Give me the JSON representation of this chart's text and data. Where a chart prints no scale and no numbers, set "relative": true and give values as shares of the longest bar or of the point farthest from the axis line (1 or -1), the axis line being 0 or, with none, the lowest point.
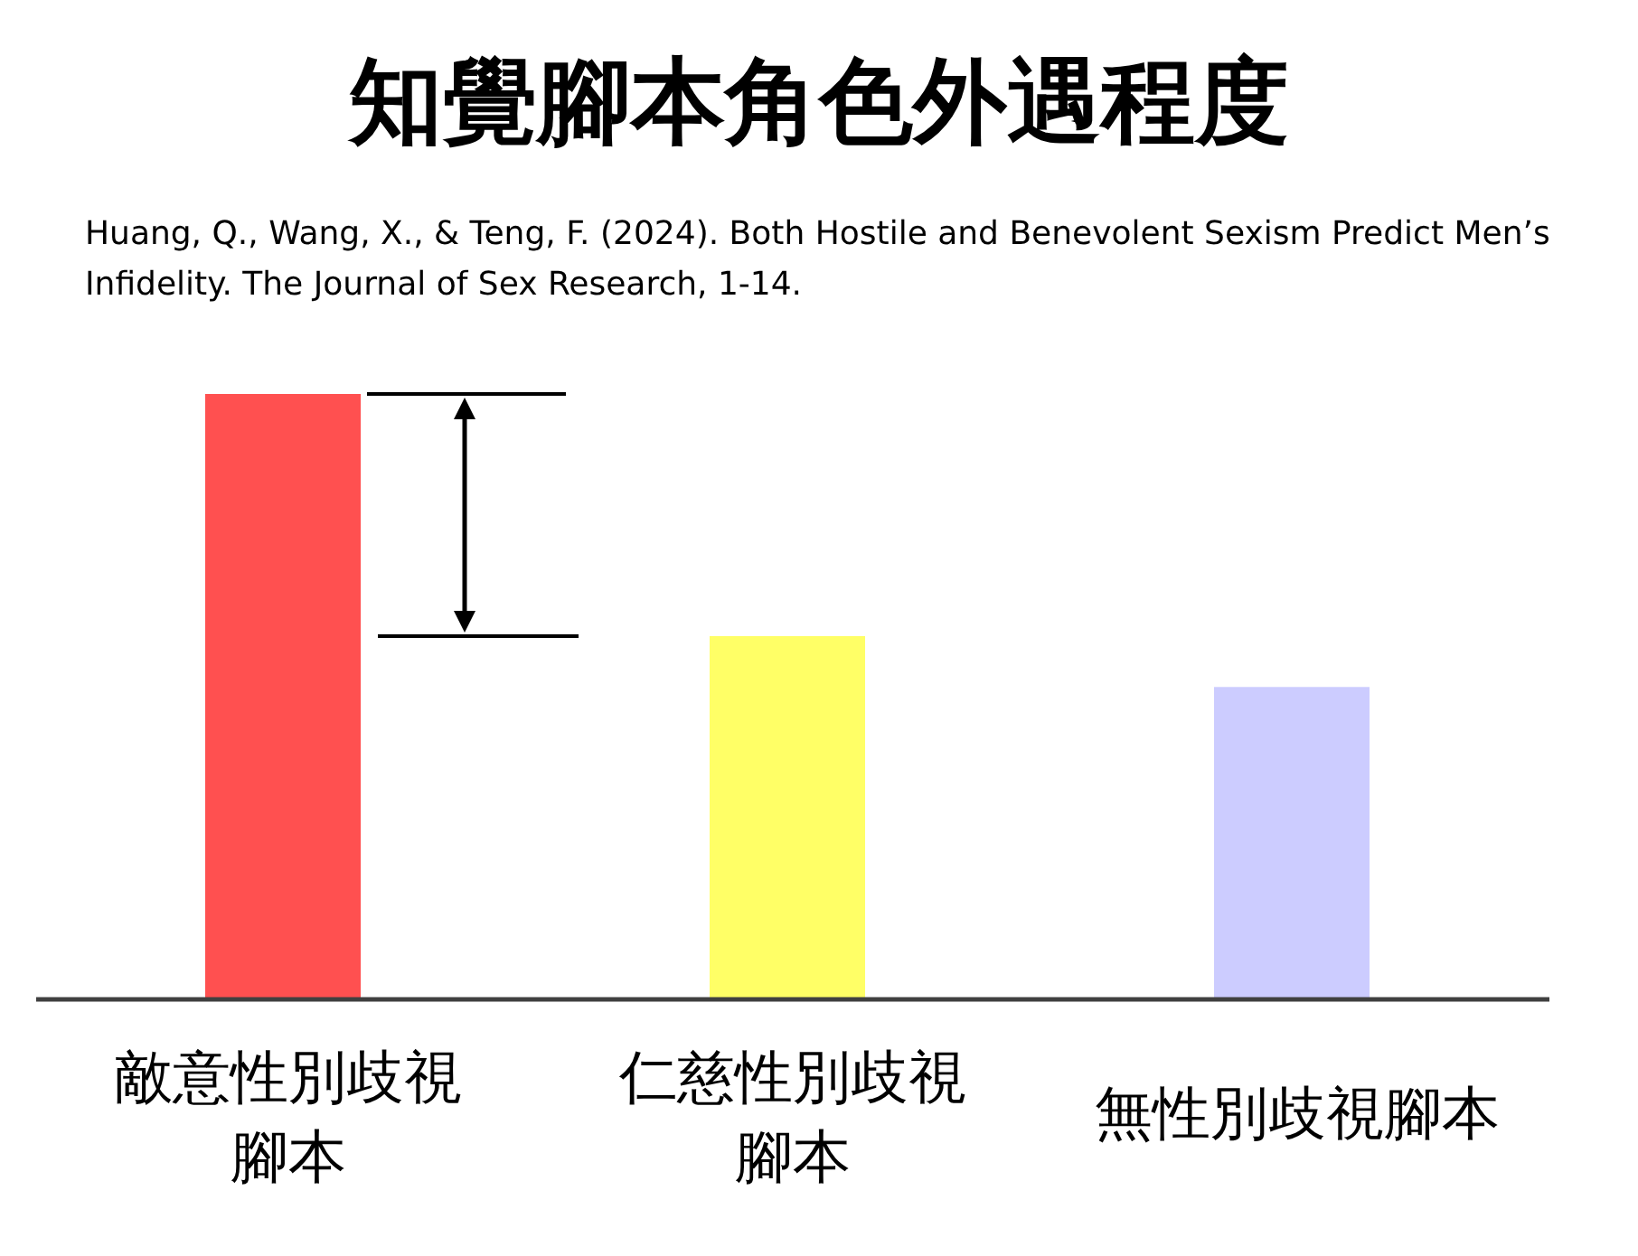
{
  "chart_data": {
    "type": "bar",
    "title": "知覺腳本角色外遇程度",
    "annotations": [
      "Huang, Q., Wang, X., & Teng, F. (2024). Both Hostile and Benevolent Sexism Predict Men’s Infidelity. The Journal of Sex Research, 1-14."
    ],
    "categories": [
      "敵意性別歧視腳本",
      "仁慈性別歧視腳本",
      "無性別歧視腳本"
    ],
    "values": [
      1,
      0.6,
      0.516
    ],
    "colors": [
      "#ff5050",
      "#ffff66",
      "#ccccff"
    ],
    "relative": true
  }
}
